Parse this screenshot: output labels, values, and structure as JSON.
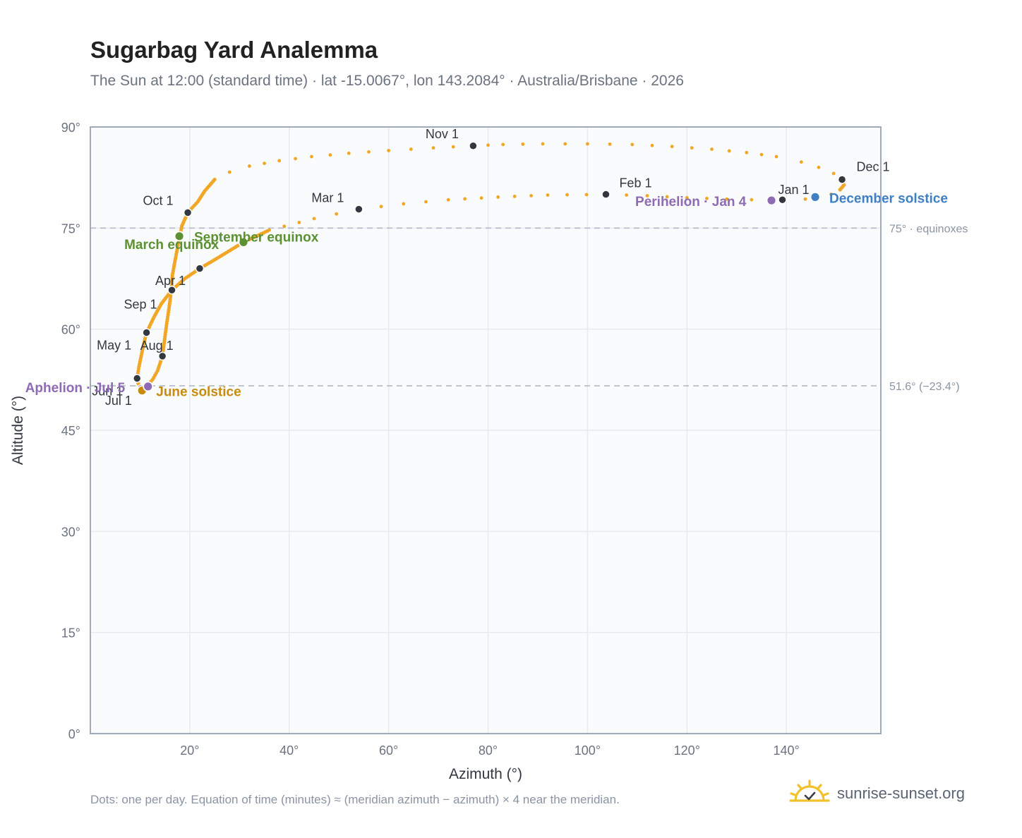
{
  "title": "Sugarbag Yard Analemma",
  "subtitle": "The Sun at 12:00 (standard time) · lat -15.0067°, lon 143.2084° · Australia/Brisbane · 2026",
  "footnote": "Dots: one per day. Equation of time (minutes) ≈ (meridian azimuth − azimuth) × 4 near the meridian.",
  "brand": {
    "name": "sunrise-sunset.org",
    "logo_icon": "sun-check-icon"
  },
  "colors": {
    "curve": "#f2a626",
    "month_marker": "#333840",
    "equinox": "#5b9132",
    "june_solstice": "#c98b0f",
    "december_solstice": "#3f7fc4",
    "apsis": "#8f6bb5",
    "reference_line": "#b9c2cd",
    "plot_bg": "#f9fbfd",
    "grid": "#e6ebf0",
    "frame": "#98a2b0"
  },
  "chart_data": {
    "type": "scatter",
    "xlabel": "Azimuth (°)",
    "ylabel": "Altitude (°)",
    "xlim": [
      0,
      159
    ],
    "ylim": [
      0,
      90
    ],
    "xticks": [
      20,
      40,
      60,
      80,
      100,
      120,
      140
    ],
    "yticks": [
      0,
      15,
      30,
      45,
      60,
      75,
      90
    ],
    "tick_suffix": "°",
    "grid": true,
    "reference_lines": [
      {
        "y": 75,
        "label": "75° · equinoxes"
      },
      {
        "y": 51.6,
        "label": "51.6° (−23.4°)"
      }
    ],
    "analemma_path": [
      [
        139.2,
        79.2
      ],
      [
        143.8,
        79.3
      ],
      [
        146.5,
        79.6
      ],
      [
        149.0,
        80.0
      ],
      [
        150.8,
        80.7
      ],
      [
        151.6,
        81.4
      ],
      [
        151.2,
        82.2
      ],
      [
        149.5,
        83.1
      ],
      [
        146.5,
        84.0
      ],
      [
        143.0,
        84.8
      ],
      [
        138.0,
        85.6
      ],
      [
        132.0,
        86.2
      ],
      [
        125.0,
        86.7
      ],
      [
        117.0,
        87.1
      ],
      [
        109.0,
        87.4
      ],
      [
        100.0,
        87.5
      ],
      [
        91.0,
        87.5
      ],
      [
        83.0,
        87.4
      ],
      [
        77.0,
        87.2
      ],
      [
        69.0,
        86.9
      ],
      [
        60.0,
        86.5
      ],
      [
        52.0,
        86.1
      ],
      [
        44.5,
        85.6
      ],
      [
        38.0,
        85.0
      ],
      [
        32.0,
        84.2
      ],
      [
        28.0,
        83.3
      ],
      [
        25.0,
        82.2
      ],
      [
        23.0,
        80.5
      ],
      [
        21.6,
        78.9
      ],
      [
        19.6,
        77.3
      ],
      [
        18.4,
        75.3
      ],
      [
        17.9,
        73.5
      ],
      [
        17.2,
        70.8
      ],
      [
        16.5,
        68.0
      ],
      [
        16.3,
        65.8
      ],
      [
        15.9,
        63.5
      ],
      [
        15.3,
        60.5
      ],
      [
        14.5,
        56.0
      ],
      [
        13.5,
        53.8
      ],
      [
        12.5,
        52.5
      ],
      [
        11.5,
        51.7
      ],
      [
        10.8,
        51.1
      ],
      [
        10.2,
        51.2
      ],
      [
        9.6,
        52.0
      ],
      [
        9.4,
        52.7
      ],
      [
        9.8,
        54.5
      ],
      [
        10.5,
        57.0
      ],
      [
        11.3,
        59.5
      ],
      [
        12.8,
        61.8
      ],
      [
        14.3,
        63.8
      ],
      [
        16.4,
        65.8
      ],
      [
        19.0,
        67.5
      ],
      [
        22.0,
        69.0
      ],
      [
        25.0,
        70.3
      ],
      [
        30.8,
        72.9
      ],
      [
        36.0,
        74.7
      ],
      [
        45.0,
        76.4
      ],
      [
        54.0,
        77.8
      ],
      [
        63.0,
        78.6
      ],
      [
        72.0,
        79.2
      ],
      [
        82.0,
        79.6
      ],
      [
        92.0,
        79.9
      ],
      [
        103.7,
        80.0
      ],
      [
        112.0,
        79.8
      ],
      [
        120.0,
        79.5
      ],
      [
        128.0,
        79.3
      ],
      [
        133.0,
        79.2
      ],
      [
        137.0,
        79.1
      ],
      [
        139.2,
        79.2
      ]
    ],
    "dotted_segments": [
      {
        "from": [
          25.0,
          82.2
        ],
        "to": [
          151.2,
          82.2
        ]
      },
      {
        "from": [
          36.0,
          74.7
        ],
        "to": [
          137.0,
          79.1
        ]
      }
    ],
    "month_markers": [
      {
        "label": "Jan 1",
        "x": 139.2,
        "y": 79.2
      },
      {
        "label": "Feb 1",
        "x": 103.7,
        "y": 80.0
      },
      {
        "label": "Mar 1",
        "x": 54.0,
        "y": 77.8
      },
      {
        "label": "Apr 1",
        "x": 16.4,
        "y": 65.8
      },
      {
        "label": "May 1",
        "x": 11.3,
        "y": 59.5
      },
      {
        "label": "Jun 1",
        "x": 9.4,
        "y": 52.7
      },
      {
        "label": "Jul 1",
        "x": 10.2,
        "y": 51.2
      },
      {
        "label": "Aug 1",
        "x": 14.5,
        "y": 56.0
      },
      {
        "label": "Sep 1",
        "x": 22.0,
        "y": 69.0
      },
      {
        "label": "Oct 1",
        "x": 19.6,
        "y": 77.3
      },
      {
        "label": "Nov 1",
        "x": 77.0,
        "y": 87.2
      },
      {
        "label": "Dec 1",
        "x": 151.2,
        "y": 82.2
      }
    ],
    "events": [
      {
        "label": "March equinox",
        "x": 17.9,
        "y": 73.8,
        "kind": "equinox"
      },
      {
        "label": "September equinox",
        "x": 30.8,
        "y": 72.9,
        "kind": "equinox"
      },
      {
        "label": "June solstice",
        "x": 10.4,
        "y": 50.9,
        "kind": "june_solstice"
      },
      {
        "label": "December solstice",
        "x": 145.8,
        "y": 79.6,
        "kind": "december_solstice"
      },
      {
        "label": "Aphelion · Jul 5",
        "x": 11.6,
        "y": 51.5,
        "kind": "apsis"
      },
      {
        "label": "Perihelion · Jan 4",
        "x": 137.0,
        "y": 79.1,
        "kind": "apsis"
      }
    ]
  }
}
